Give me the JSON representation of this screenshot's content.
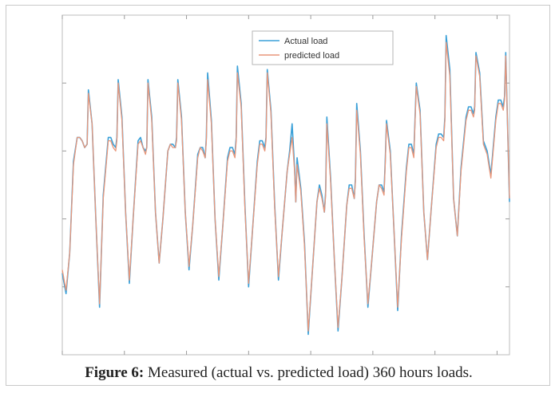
{
  "caption": {
    "label": "Figure 6:",
    "text": " Measured (actual vs. predicted load) 360 hours loads."
  },
  "chart_data": {
    "type": "line",
    "xlim": [
      0,
      360
    ],
    "ylim": [
      0,
      100
    ],
    "x_ticks": [
      0,
      50,
      100,
      150,
      200,
      250,
      300,
      350
    ],
    "y_ticks": [
      20,
      40,
      60,
      80
    ],
    "tick_labels_visible": false,
    "grid": false,
    "legend_position": "top-right",
    "series": [
      {
        "name": "Actual load",
        "color": "#3aa0d8",
        "x": [
          0,
          3,
          6,
          9,
          12,
          14,
          16,
          18,
          20,
          21,
          24,
          27,
          30,
          33,
          37,
          39,
          41,
          43,
          44,
          45,
          48,
          51,
          54,
          57,
          61,
          63,
          65,
          67,
          68,
          69,
          72,
          75,
          78,
          81,
          85,
          87,
          89,
          91,
          92,
          93,
          96,
          99,
          102,
          105,
          109,
          111,
          113,
          115,
          116,
          117,
          120,
          123,
          126,
          129,
          133,
          135,
          137,
          139,
          140,
          141,
          144,
          147,
          150,
          153,
          157,
          159,
          161,
          163,
          164,
          165,
          168,
          171,
          174,
          177,
          181,
          183,
          185,
          187,
          188,
          189,
          192,
          195,
          198,
          201,
          205,
          207,
          209,
          211,
          212,
          213,
          216,
          219,
          222,
          225,
          229,
          231,
          233,
          235,
          236,
          237,
          240,
          243,
          246,
          249,
          253,
          255,
          257,
          259,
          260,
          261,
          264,
          267,
          270,
          273,
          277,
          279,
          281,
          283,
          284,
          285,
          288,
          291,
          294,
          297,
          301,
          303,
          305,
          307,
          308,
          309,
          312,
          315,
          318,
          321,
          325,
          327,
          329,
          331,
          332,
          333,
          336,
          339,
          342,
          345,
          349,
          351,
          353,
          355,
          356,
          357,
          360
        ],
        "y": [
          24,
          18,
          30,
          57,
          64,
          64,
          63,
          61,
          62,
          78,
          68,
          40,
          14,
          47,
          64,
          64,
          62,
          61,
          64,
          81,
          70,
          42,
          21,
          40,
          63,
          64,
          61,
          60,
          61,
          81,
          70,
          42,
          27,
          40,
          60,
          62,
          62,
          61,
          64,
          81,
          70,
          42,
          25,
          38,
          59,
          61,
          61,
          58,
          64,
          83,
          69,
          40,
          22,
          37,
          58,
          61,
          61,
          59,
          64,
          85,
          74,
          44,
          20,
          36,
          57,
          63,
          63,
          61,
          64,
          84,
          72,
          44,
          22,
          36,
          54,
          60,
          68,
          55,
          45,
          58,
          49,
          33,
          6,
          23,
          45,
          50,
          47,
          42,
          48,
          70,
          52,
          28,
          7,
          22,
          44,
          50,
          50,
          46,
          52,
          74,
          60,
          35,
          14,
          27,
          45,
          50,
          50,
          48,
          57,
          69,
          60,
          37,
          13,
          35,
          55,
          62,
          62,
          59,
          70,
          80,
          72,
          42,
          28,
          43,
          62,
          65,
          65,
          64,
          70,
          94,
          84,
          46,
          35,
          55,
          70,
          73,
          73,
          71,
          73,
          89,
          83,
          63,
          60,
          53,
          70,
          75,
          75,
          73,
          76,
          89,
          45
        ]
      },
      {
        "name": "predicted load",
        "color": "#e8967a",
        "x": [
          0,
          3,
          6,
          9,
          12,
          14,
          16,
          18,
          20,
          21,
          24,
          27,
          30,
          33,
          37,
          39,
          41,
          43,
          44,
          45,
          48,
          51,
          54,
          57,
          61,
          63,
          65,
          67,
          68,
          69,
          72,
          75,
          78,
          81,
          85,
          87,
          89,
          91,
          92,
          93,
          96,
          99,
          102,
          105,
          109,
          111,
          113,
          115,
          116,
          117,
          120,
          123,
          126,
          129,
          133,
          135,
          137,
          139,
          140,
          141,
          144,
          147,
          150,
          153,
          157,
          159,
          161,
          163,
          164,
          165,
          168,
          171,
          174,
          177,
          181,
          183,
          185,
          187,
          188,
          189,
          192,
          195,
          198,
          201,
          205,
          207,
          209,
          211,
          212,
          213,
          216,
          219,
          222,
          225,
          229,
          231,
          233,
          235,
          236,
          237,
          240,
          243,
          246,
          249,
          253,
          255,
          257,
          259,
          260,
          261,
          264,
          267,
          270,
          273,
          277,
          279,
          281,
          283,
          284,
          285,
          288,
          291,
          294,
          297,
          301,
          303,
          305,
          307,
          308,
          309,
          312,
          315,
          318,
          321,
          325,
          327,
          329,
          331,
          332,
          333,
          336,
          339,
          342,
          345,
          349,
          351,
          353,
          355,
          356,
          357,
          360
        ],
        "y": [
          25,
          19,
          30,
          56,
          64,
          64,
          63,
          61,
          62,
          77,
          68,
          40,
          15,
          46,
          63,
          63,
          61,
          60,
          63,
          80,
          69,
          42,
          22,
          40,
          62,
          63,
          61,
          59,
          61,
          80,
          69,
          42,
          27,
          40,
          60,
          62,
          61,
          61,
          63,
          80,
          69,
          42,
          26,
          38,
          58,
          61,
          60,
          58,
          63,
          81,
          68,
          40,
          23,
          37,
          57,
          60,
          60,
          58,
          63,
          83,
          73,
          43,
          21,
          36,
          56,
          62,
          62,
          60,
          63,
          83,
          71,
          43,
          23,
          36,
          54,
          59,
          64,
          54,
          45,
          56,
          48,
          32,
          7,
          23,
          45,
          49,
          46,
          42,
          47,
          68,
          51,
          28,
          8,
          22,
          44,
          49,
          49,
          46,
          51,
          72,
          59,
          34,
          15,
          27,
          45,
          50,
          49,
          47,
          56,
          68,
          59,
          37,
          14,
          34,
          54,
          61,
          61,
          58,
          69,
          79,
          71,
          42,
          28,
          43,
          61,
          64,
          64,
          63,
          69,
          92,
          82,
          46,
          35,
          54,
          69,
          72,
          72,
          70,
          72,
          88,
          82,
          62,
          59,
          52,
          69,
          74,
          74,
          72,
          75,
          88,
          46
        ]
      }
    ]
  }
}
